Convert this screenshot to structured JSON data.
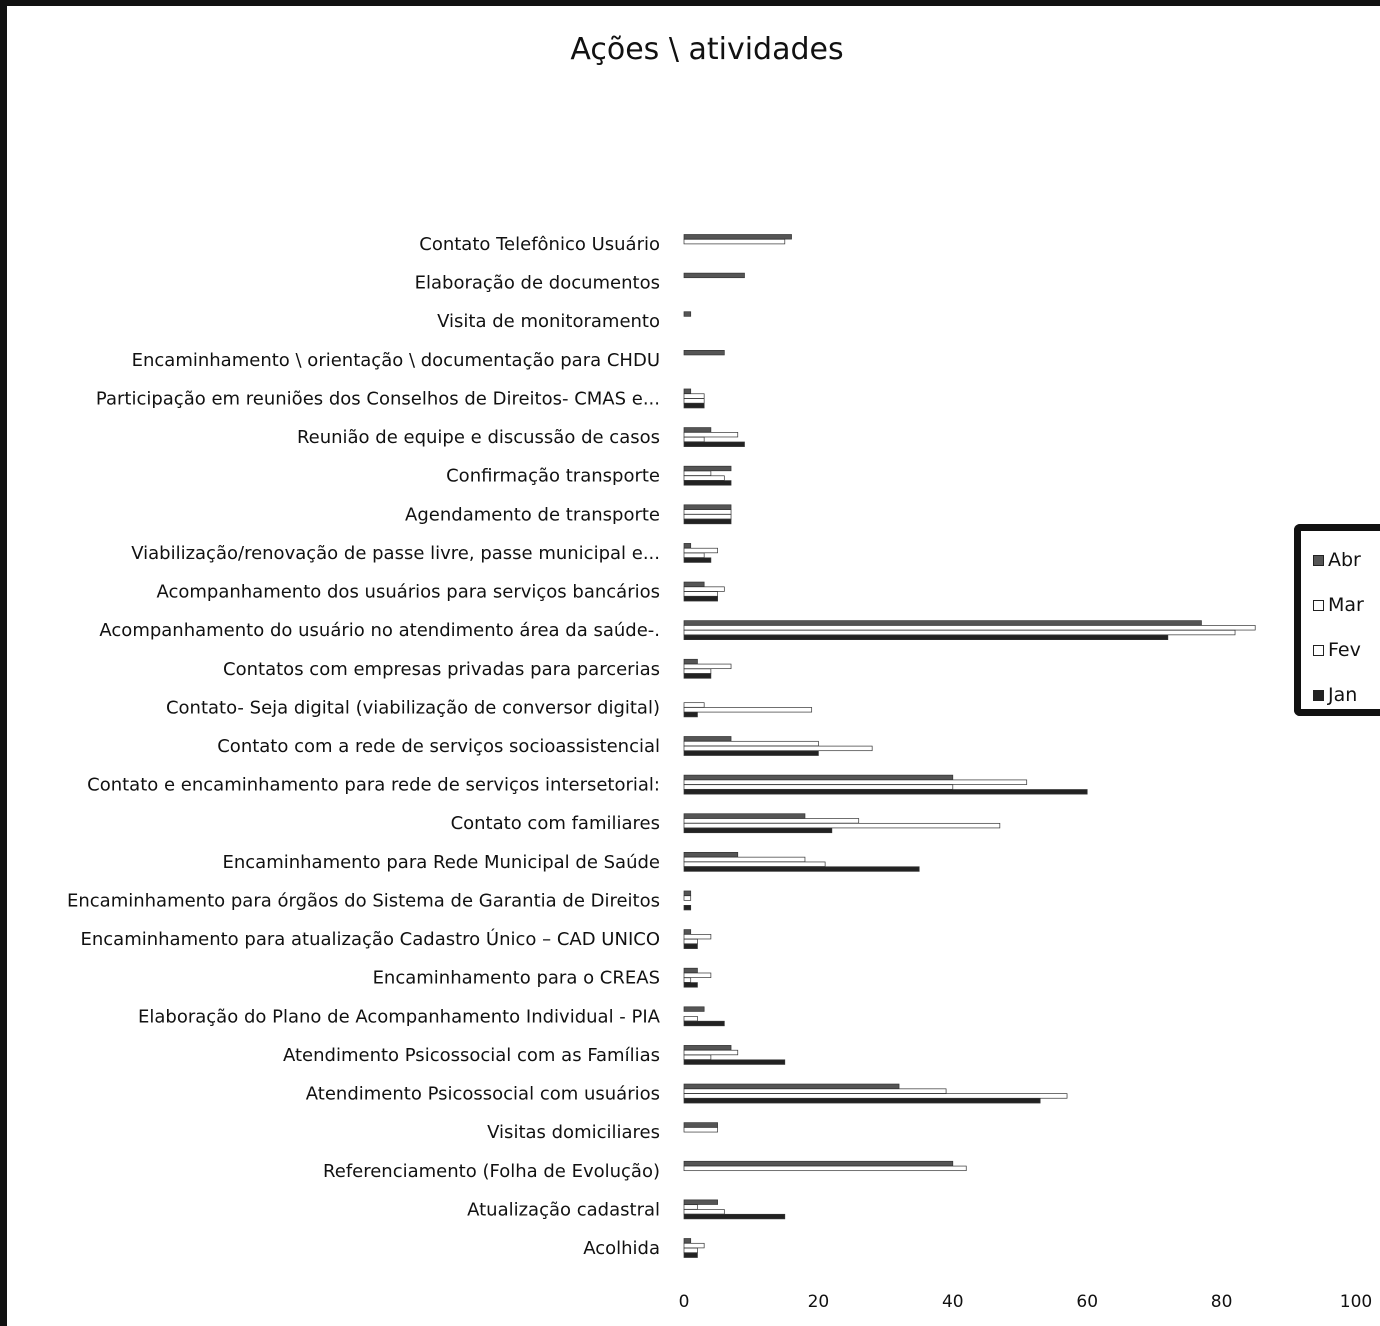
{
  "chart_data": {
    "type": "bar",
    "orientation": "horizontal",
    "title": "Ações \\ atividades",
    "xlim": [
      0,
      100
    ],
    "xticks": [
      0,
      20,
      40,
      60,
      80,
      100
    ],
    "grid": false,
    "legend_position": "right",
    "categories": [
      "Contato Telefônico Usuário",
      "Elaboração de documentos",
      "Visita de monitoramento",
      "Encaminhamento \\ orientação \\ documentação para CHDU",
      "Participação em reuniões dos Conselhos de Direitos- CMAS e...",
      "Reunião de equipe e discussão de casos",
      "Confirmação transporte",
      "Agendamento de transporte",
      "Viabilização/renovação de passe livre, passe municipal e...",
      "Acompanhamento dos usuários para serviços bancários",
      "Acompanhamento do usuário no atendimento área da saúde-.",
      "Contatos com empresas privadas para parcerias",
      "Contato- Seja digital (viabilização de conversor digital)",
      "Contato com a rede de serviços socioassistencial",
      "Contato e encaminhamento para rede de serviços intersetorial:",
      "Contato com familiares",
      "Encaminhamento para Rede Municipal de Saúde",
      "Encaminhamento para órgãos do Sistema de Garantia de Direitos",
      "Encaminhamento para atualização Cadastro Único – CAD UNICO",
      "Encaminhamento para o CREAS",
      "Elaboração do Plano de Acompanhamento Individual - PIA",
      "Atendimento Psicossocial com as Famílias",
      "Atendimento Psicossocial com usuários",
      "Visitas domiciliares",
      "Referenciamento (Folha de Evolução)",
      "Atualização cadastral",
      "Acolhida"
    ],
    "series": [
      {
        "name": "Abr",
        "color": "#555555",
        "values": [
          16,
          9,
          1,
          6,
          1,
          4,
          7,
          7,
          1,
          3,
          77,
          2,
          0,
          7,
          40,
          18,
          8,
          1,
          1,
          2,
          3,
          7,
          32,
          5,
          40,
          5,
          1
        ]
      },
      {
        "name": "Mar",
        "color": "#ffffff",
        "values": [
          15,
          0,
          0,
          0,
          3,
          8,
          4,
          7,
          5,
          6,
          85,
          7,
          3,
          20,
          51,
          26,
          18,
          1,
          4,
          4,
          0,
          8,
          39,
          5,
          42,
          2,
          3
        ]
      },
      {
        "name": "Fev",
        "color": "#ffffff",
        "values": [
          0,
          0,
          0,
          0,
          3,
          3,
          6,
          7,
          3,
          5,
          82,
          4,
          19,
          28,
          40,
          47,
          21,
          0,
          2,
          1,
          2,
          4,
          57,
          0,
          0,
          6,
          2
        ]
      },
      {
        "name": "Jan",
        "color": "#222222",
        "values": [
          0,
          0,
          0,
          0,
          3,
          9,
          7,
          7,
          4,
          5,
          72,
          4,
          2,
          20,
          60,
          22,
          35,
          1,
          2,
          2,
          6,
          15,
          53,
          0,
          0,
          15,
          2
        ]
      }
    ]
  },
  "legend": {
    "items": [
      {
        "label": "Abr",
        "color": "#555555"
      },
      {
        "label": "Mar",
        "color": "#ffffff"
      },
      {
        "label": "Fev",
        "color": "#ffffff"
      },
      {
        "label": "Jan",
        "color": "#222222"
      }
    ]
  }
}
